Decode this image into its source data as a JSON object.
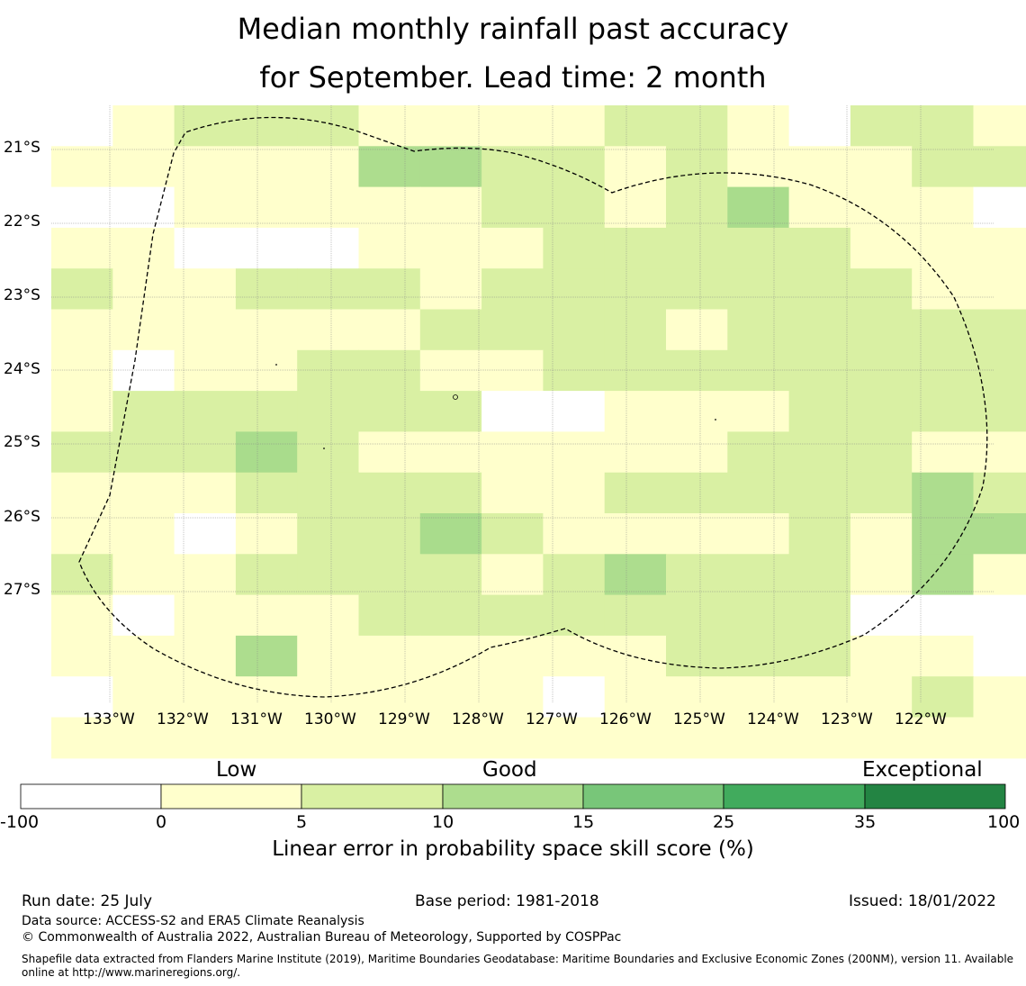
{
  "title_line1": "Median monthly rainfall past accuracy",
  "title_line2": "for September. Lead time: 2 month",
  "lat_labels": [
    "21°S",
    "22°S",
    "23°S",
    "24°S",
    "25°S",
    "26°S",
    "27°S"
  ],
  "lon_labels": [
    "133°W",
    "132°W",
    "131°W",
    "130°W",
    "129°W",
    "128°W",
    "127°W",
    "126°W",
    "125°W",
    "124°W",
    "123°W",
    "122°W"
  ],
  "colorbar": {
    "category_labels": [
      "Low",
      "Good",
      "Exceptional"
    ],
    "ticks": [
      "-100",
      "0",
      "5",
      "10",
      "15",
      "25",
      "35",
      "100"
    ],
    "colors": [
      "#ffffff",
      "#ffffcc",
      "#d9f0a3",
      "#addd8e",
      "#78c679",
      "#41ab5d",
      "#238443"
    ],
    "title": "Linear error in probability space skill score (%)"
  },
  "grid_cells": [
    "xabbbaaaabbaxbbaaxxx",
    "aaaaaccbbabaaabbbaxx",
    "xxaaaaabbabdaaaxbbba",
    "aaxxxaaabbbbbaaaaaba",
    "baabbbabbbbbbbaaabaa",
    "aaaaaabbbbabbbbbbbbb",
    "axaabbaabbbbbbbbbbba",
    "abbbbbbxxaaabbbbdcbb",
    "bbbdbaaaaaabbbaaabbb",
    "aaabbbbaabbbbbcbbcbc",
    "aaxabbdbaaaabacccbbb",
    "baabbbbabcbbbacaefeb",
    "axaaabbbbbbbbxxxxbdb",
    "aaacaaaaaabbbaaxabba",
    "xaaaaaaaxaaaaabaaaaa",
    "aaaaaaaaaaaaaaaaaaaa"
  ],
  "footer": {
    "run_date": "Run date: 25 July",
    "base_period": "Base period: 1981-2018",
    "issued": "Issued: 18/01/2022",
    "data_source": "Data source: ACCESS-S2 and ERA5 Climate Reanalysis",
    "copyright": "© Commonwealth of Australia 2022, Australian Bureau of Meteorology, Supported by COSPPac",
    "shapefile": "Shapefile data extracted from Flanders Marine Institute (2019), Maritime Boundaries Geodatabase: Maritime Boundaries and Exclusive Economic Zones (200NM), version 11. Available online at http://www.marineregions.org/."
  }
}
